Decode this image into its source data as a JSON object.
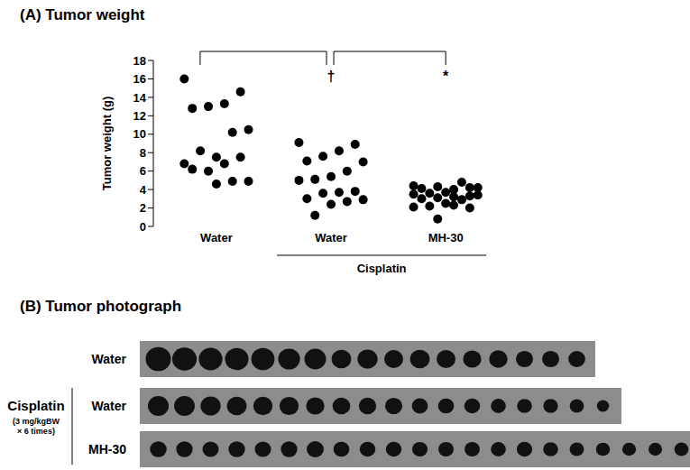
{
  "chart_data": {
    "type": "scatter",
    "title": "(A) Tumor weight",
    "y_label": "Tumor weight (g)",
    "categories": [
      "Water",
      "Water",
      "MH-30"
    ],
    "group_label": {
      "text": "Cisplatin",
      "categories": [
        1,
        2
      ]
    },
    "values": [
      [
        16.0,
        14.6,
        13.3,
        13.0,
        12.8,
        10.5,
        10.2,
        7.5,
        8.2,
        6.8,
        7.5,
        6.8,
        6.0,
        6.2,
        4.9,
        4.9,
        4.6
      ],
      [
        9.1,
        8.9,
        8.2,
        7.6,
        7.1,
        7.0,
        6.0,
        5.4,
        5.1,
        5.0,
        3.8,
        3.7,
        3.6,
        3.0,
        2.9,
        2.7,
        2.4,
        1.2
      ],
      [
        4.4,
        4.2,
        4.0,
        4.3,
        4.1,
        4.2,
        4.8,
        3.7,
        3.6,
        3.5,
        3.3,
        3.2,
        3.1,
        3.0,
        3.4,
        2.9,
        2.5,
        2.2,
        2.1,
        2.0,
        2.3,
        0.8
      ]
    ],
    "color": "#000000",
    "marker": "circle",
    "ylim": [
      0,
      18
    ],
    "yticks": [
      0,
      2,
      4,
      6,
      8,
      10,
      12,
      14,
      16,
      18
    ],
    "grid": false,
    "annotations": [
      {
        "text": "†",
        "between": [
          0,
          1
        ]
      },
      {
        "text": "*",
        "between": [
          1,
          2
        ]
      }
    ]
  },
  "photograph": {
    "title": "(B) Tumor photograph",
    "rows": [
      {
        "label": "Water"
      },
      {
        "label": "Water",
        "group": "Cisplatin",
        "note": [
          "(3 mg/kgBW",
          "× 6 times)"
        ]
      },
      {
        "label": "MH-30"
      }
    ]
  }
}
